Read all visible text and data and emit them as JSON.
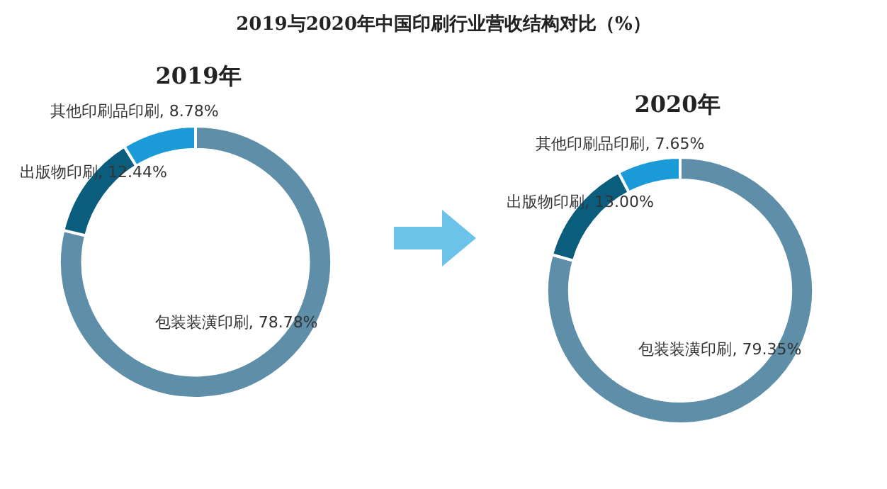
{
  "chart_data": [
    {
      "type": "donut",
      "title": "2019与2020年中国印刷行业营收结构对比（%）",
      "subtitle": "2019年",
      "categories": [
        "包装装潢印刷",
        "出版物印刷",
        "其他印刷品印刷"
      ],
      "values": [
        78.78,
        12.44,
        8.78
      ],
      "value_labels": [
        "78.78%",
        "12.44%",
        "8.78%"
      ],
      "colors": [
        "#5f8fa8",
        "#0b5d7e",
        "#1a9ad6"
      ]
    },
    {
      "type": "donut",
      "subtitle": "2020年",
      "categories": [
        "包装装潢印刷",
        "出版物印刷",
        "其他印刷品印刷"
      ],
      "values": [
        79.35,
        13.0,
        7.65
      ],
      "value_labels": [
        "79.35%",
        "13.00%",
        "7.65%"
      ],
      "colors": [
        "#5f8fa8",
        "#0b5d7e",
        "#1a9ad6"
      ]
    }
  ]
}
